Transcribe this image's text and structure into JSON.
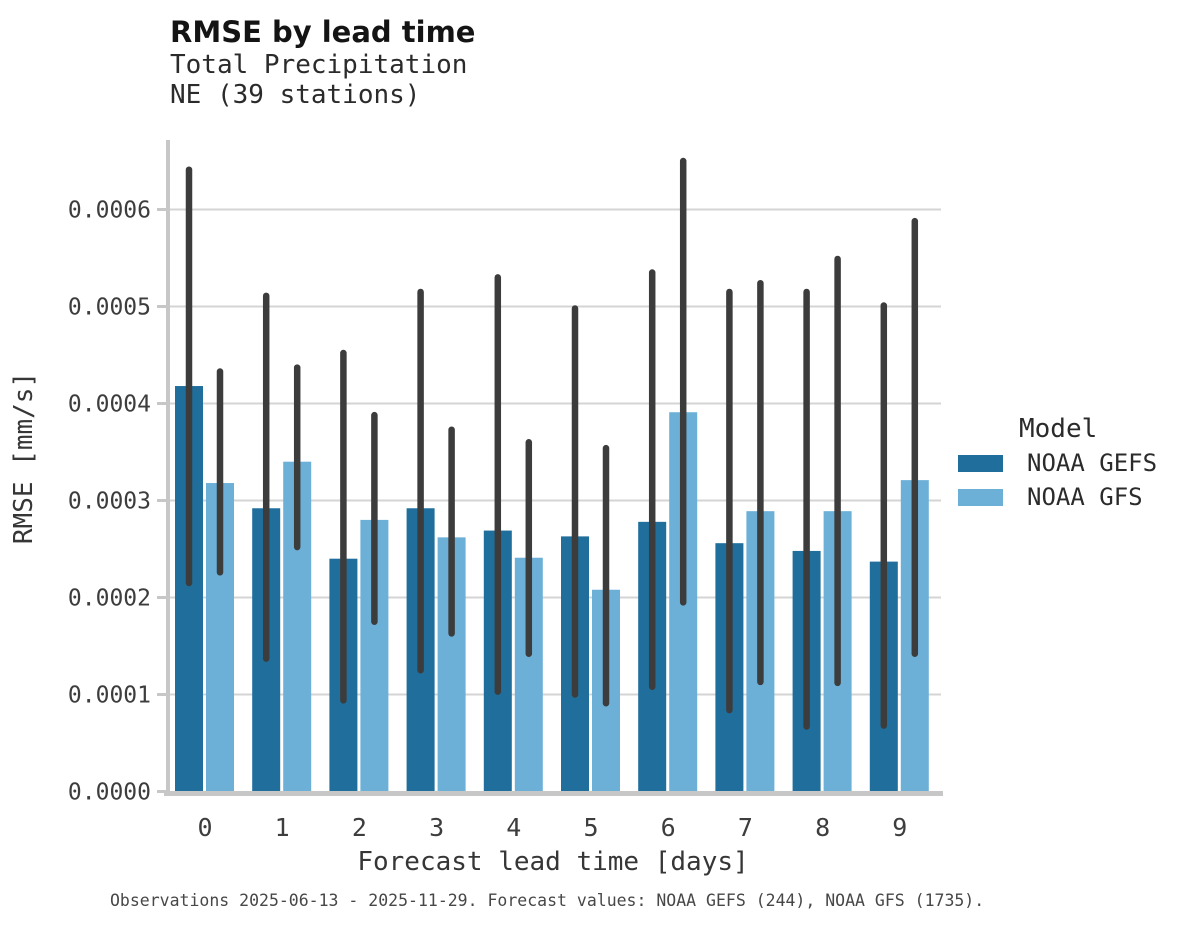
{
  "caption": "Observations 2025-06-13 - 2025-11-29. Forecast values: NOAA GEFS (244), NOAA GFS (1735).",
  "colors": {
    "grid": "#d4d4d4",
    "spine": "#c7c7c7",
    "error_bar": "#3c3c3c",
    "gefs_blue": "#1f6e9c",
    "gfs_blue": "#6cb0d8"
  },
  "chart_data": {
    "type": "bar",
    "bar_mode": "grouped",
    "error_bars": true,
    "title": "RMSE by lead time",
    "subtitle": [
      "Total Precipitation",
      "NE (39 stations)"
    ],
    "xlabel": "Forecast lead time [days]",
    "ylabel": "RMSE [mm/s]",
    "categories": [
      "0",
      "1",
      "2",
      "3",
      "4",
      "5",
      "6",
      "7",
      "8",
      "9"
    ],
    "y_tick_values": [
      0,
      0.0001,
      0.0002,
      0.0003,
      0.0004,
      0.0005,
      0.0006
    ],
    "y_tick_labels": [
      "0.0000",
      "0.0001",
      "0.0002",
      "0.0003",
      "0.0004",
      "0.0005",
      "0.0006"
    ],
    "ylim": [
      0,
      0.000672
    ],
    "grid": true,
    "legend_title": "Model",
    "legend_position": "right",
    "error_bar_color": "#3c3c3c",
    "series": [
      {
        "name": "NOAA GEFS",
        "color": "#1f6e9c",
        "values": [
          0.000418,
          0.000292,
          0.00024,
          0.000292,
          0.000269,
          0.000263,
          0.000278,
          0.000256,
          0.000248,
          0.000237
        ],
        "err_low": [
          0.000215,
          0.000137,
          9.4e-05,
          0.000125,
          0.000103,
          0.0001,
          0.000108,
          8.4e-05,
          6.7e-05,
          6.8e-05
        ],
        "err_high": [
          0.000641,
          0.000511,
          0.000452,
          0.000515,
          0.00053,
          0.000498,
          0.000535,
          0.000515,
          0.000515,
          0.000501
        ]
      },
      {
        "name": "NOAA GFS",
        "color": "#6cb0d8",
        "values": [
          0.000318,
          0.00034,
          0.00028,
          0.000262,
          0.000241,
          0.000208,
          0.000391,
          0.000289,
          0.000289,
          0.000321
        ],
        "err_low": [
          0.000226,
          0.000252,
          0.000175,
          0.000163,
          0.000142,
          9.1e-05,
          0.000195,
          0.000113,
          0.000112,
          0.000142
        ],
        "err_high": [
          0.000433,
          0.000437,
          0.000388,
          0.000373,
          0.00036,
          0.000354,
          0.00065,
          0.000524,
          0.000549,
          0.000588
        ]
      }
    ]
  }
}
